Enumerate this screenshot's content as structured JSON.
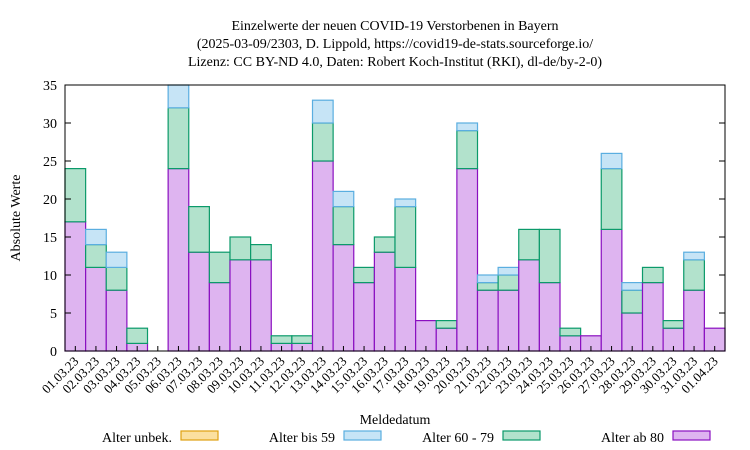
{
  "chart_data": {
    "type": "bar",
    "stacked": true,
    "title": [
      "Einzelwerte der neuen COVID-19 Verstorbenen in Bayern",
      "(2025-03-09/2303, D. Lippold, https://covid19-de-stats.sourceforge.io/",
      "Lizenz: CC BY-ND 4.0, Daten: Robert Koch-Institut (RKI), dl-de/by-2-0)"
    ],
    "xlabel": "Meldedatum",
    "ylabel": "Absolute Werte",
    "ylim": [
      0,
      35
    ],
    "yticks": [
      0,
      5,
      10,
      15,
      20,
      25,
      30,
      35
    ],
    "categories": [
      "01.03.23",
      "02.03.23",
      "03.03.23",
      "04.03.23",
      "05.03.23",
      "06.03.23",
      "07.03.23",
      "08.03.23",
      "09.03.23",
      "10.03.23",
      "11.03.23",
      "12.03.23",
      "13.03.23",
      "14.03.23",
      "15.03.23",
      "16.03.23",
      "17.03.23",
      "18.03.23",
      "19.03.23",
      "20.03.23",
      "21.03.23",
      "22.03.23",
      "23.03.23",
      "24.03.23",
      "25.03.23",
      "26.03.23",
      "27.03.23",
      "28.03.23",
      "29.03.23",
      "30.03.23",
      "31.03.23",
      "01.04.23"
    ],
    "series": [
      {
        "name": "Alter unbek.",
        "fill": "#fbe0a0",
        "stroke": "#e0a010",
        "values": [
          0,
          0,
          0,
          0,
          0,
          0,
          0,
          0,
          0,
          0,
          0,
          0,
          0,
          0,
          0,
          0,
          0,
          0,
          0,
          0,
          0,
          0,
          0,
          0,
          0,
          0,
          0,
          0,
          0,
          0,
          0,
          0
        ]
      },
      {
        "name": "Alter bis 59",
        "fill": "#c6e4f6",
        "stroke": "#5aaee0",
        "values": [
          0,
          2,
          2,
          0,
          0,
          4,
          0,
          0,
          0,
          0,
          0,
          0,
          3,
          2,
          0,
          0,
          1,
          0,
          0,
          1,
          1,
          1,
          0,
          0,
          0,
          0,
          2,
          1,
          0,
          0,
          1,
          0
        ]
      },
      {
        "name": "Alter 60 - 79",
        "fill": "#b2e2cc",
        "stroke": "#0b9a6a",
        "values": [
          7,
          3,
          3,
          2,
          0,
          8,
          6,
          4,
          3,
          2,
          1,
          1,
          5,
          5,
          2,
          2,
          8,
          0,
          1,
          5,
          1,
          2,
          4,
          7,
          1,
          0,
          8,
          3,
          2,
          1,
          4,
          0
        ]
      },
      {
        "name": "Alter ab 80",
        "fill": "#deb4f0",
        "stroke": "#8a10c0",
        "values": [
          17,
          11,
          8,
          1,
          0,
          24,
          13,
          9,
          12,
          12,
          1,
          1,
          25,
          14,
          9,
          13,
          11,
          4,
          3,
          24,
          8,
          8,
          12,
          9,
          2,
          2,
          16,
          5,
          9,
          3,
          8,
          3
        ]
      }
    ],
    "legend_position": "bottom",
    "grid": false
  }
}
